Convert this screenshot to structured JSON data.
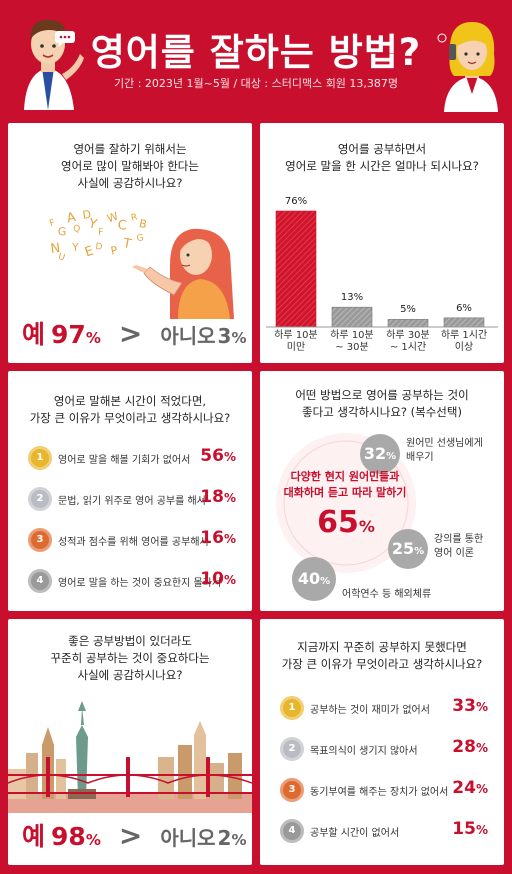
{
  "header": {
    "title": "영어를 잘하는 방법?",
    "subtitle": "기간 : 2023년 1월~5월 / 대상 : 스터디맥스 회원 13,387명"
  },
  "panel1": {
    "question": "영어를 잘하기 위해서는\n영어로 많이 말해봐야 한다는\n사실에 공감하시나요?",
    "letters": [
      "F",
      "G",
      "A",
      "Q",
      "D",
      "Y",
      "F",
      "W",
      "C",
      "R",
      "B",
      "N",
      "U",
      "Y",
      "E",
      "D",
      "P",
      "T",
      "G"
    ],
    "yes_label": "예",
    "yes_value": "97",
    "gt": ">",
    "no_label": "아니오",
    "no_value": "3",
    "pct": "%"
  },
  "panel2": {
    "question": "영어를 공부하면서\n영어로 말을 한 시간은 얼마나 되시나요?"
  },
  "chart_data": {
    "type": "bar",
    "categories": [
      "하루 10분\n미만",
      "하루 10분\n~ 30분",
      "하루 30분\n~ 1시간",
      "하루 1시간\n이상"
    ],
    "values": [
      76,
      13,
      5,
      6
    ],
    "value_labels": [
      "76%",
      "13%",
      "5%",
      "6%"
    ],
    "highlight_color": "#d0142c",
    "other_color": "#9a9a9a"
  },
  "panel3": {
    "question": "영어로 말해본 시간이 적었다면,\n가장 큰 이유가 무엇이라고 생각하시나요?",
    "items": [
      {
        "rank": "1",
        "label": "영어로 말을 해볼 기회가 없어서",
        "value": "56",
        "color": "#e8b62c"
      },
      {
        "rank": "2",
        "label": "문법, 읽기 위주로 영어 공부를 해서",
        "value": "18",
        "color": "#b9bcc2"
      },
      {
        "rank": "3",
        "label": "성적과 점수를 위해 영어를 공부해서",
        "value": "16",
        "color": "#de6a2f"
      },
      {
        "rank": "4",
        "label": "영어로 말을 하는 것이 중요한지 몰라서",
        "value": "10",
        "color": "#9a9a9a"
      }
    ],
    "pct": "%"
  },
  "panel4": {
    "question": "어떤 방법으로 영어를 공부하는 것이\n좋다고 생각하시나요? (복수선택)",
    "main_text": "다양한 현지 원어민들과\n대화하며 듣고 따라 말하기",
    "main_value": "65",
    "bubbles": [
      {
        "value": "32",
        "label": "원어민 선생님에게\n배우기"
      },
      {
        "value": "25",
        "label": "강의를 통한\n영어 이론"
      },
      {
        "value": "40",
        "label": "어학연수 등 해외체류"
      }
    ],
    "pct": "%",
    "main_color": "#c8102e"
  },
  "panel5": {
    "question": "좋은 공부방법이 있더라도\n꾸준히 공부하는 것이 중요하다는\n사실에 공감하시나요?",
    "yes_label": "예",
    "yes_value": "98",
    "gt": ">",
    "no_label": "아니오",
    "no_value": "2",
    "pct": "%"
  },
  "panel6": {
    "question": "지금까지 꾸준히 공부하지 못했다면\n가장 큰 이유가 무엇이라고 생각하시나요?",
    "items": [
      {
        "rank": "1",
        "label": "공부하는 것이 재미가 없어서",
        "value": "33",
        "color": "#e8b62c"
      },
      {
        "rank": "2",
        "label": "목표의식이 생기지 않아서",
        "value": "28",
        "color": "#b9bcc2"
      },
      {
        "rank": "3",
        "label": "동기부여를 해주는 장치가 없어서",
        "value": "24",
        "color": "#de6a2f"
      },
      {
        "rank": "4",
        "label": "공부할 시간이 없어서",
        "value": "15",
        "color": "#9a9a9a"
      }
    ],
    "pct": "%"
  }
}
